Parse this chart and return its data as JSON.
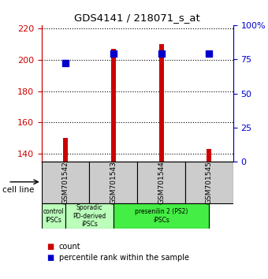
{
  "title": "GDS4141 / 218071_s_at",
  "samples": [
    "GSM701542",
    "GSM701543",
    "GSM701544",
    "GSM701545"
  ],
  "count_values": [
    150,
    207,
    210,
    143
  ],
  "percentile_values": [
    72,
    79,
    79,
    79
  ],
  "ylim_left": [
    135,
    222
  ],
  "ylim_right": [
    0,
    100
  ],
  "yticks_left": [
    140,
    160,
    180,
    200,
    220
  ],
  "yticks_right": [
    0,
    25,
    50,
    75,
    100
  ],
  "yticklabels_right": [
    "0",
    "25",
    "50",
    "75",
    "100%"
  ],
  "left_color": "#cc0000",
  "right_color": "#0000cc",
  "bar_color": "#cc0000",
  "dot_color": "#0000cc",
  "bar_width": 0.1,
  "dot_size": 28,
  "group_configs": [
    [
      0.0,
      0.5,
      "control\nIPSCs",
      "#bbffbb"
    ],
    [
      0.5,
      1.5,
      "Sporadic\nPD-derived\niPSCs",
      "#bbffbb"
    ],
    [
      1.5,
      3.5,
      "presenilin 2 (PS2)\niPSCs",
      "#44ee44"
    ]
  ],
  "legend_count_color": "#cc0000",
  "legend_pct_color": "#0000cc",
  "legend_count_label": "count",
  "legend_pct_label": "percentile rank within the sample",
  "cell_line_label": "cell line"
}
